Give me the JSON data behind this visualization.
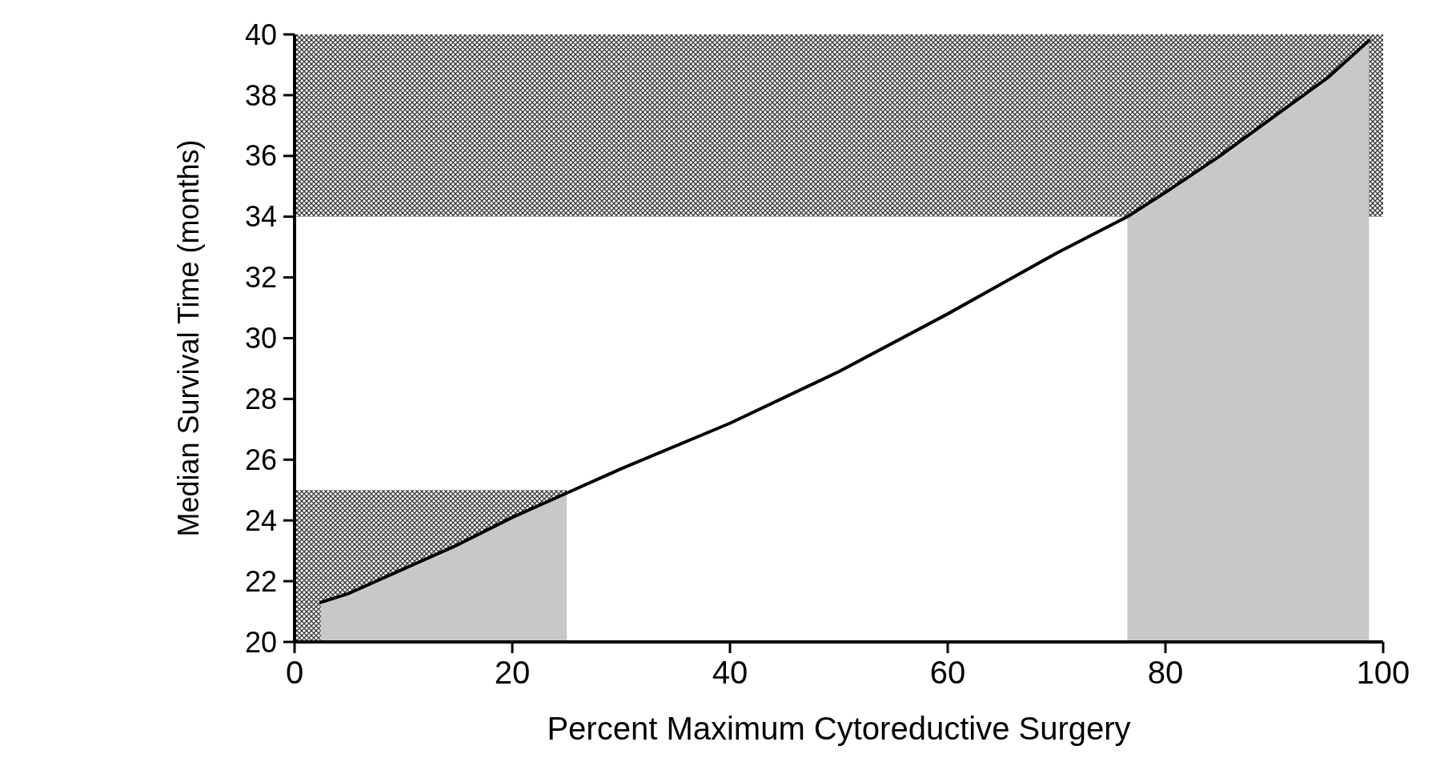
{
  "chart_data": {
    "type": "line",
    "xlabel": "Percent Maximum Cytoreductive Surgery",
    "ylabel": "Median Survival Time (months)",
    "xlim": [
      0,
      100
    ],
    "ylim": [
      20,
      40
    ],
    "xticks": [
      0,
      20,
      40,
      60,
      80,
      100
    ],
    "yticks": [
      20,
      22,
      24,
      26,
      28,
      30,
      32,
      34,
      36,
      38,
      40
    ],
    "grid": false,
    "bands": [
      {
        "axis": "y",
        "from": 34,
        "to": 40,
        "color": "#333333"
      }
    ],
    "series": [
      {
        "type": "area",
        "color": "#333333",
        "x": [
          0,
          25
        ],
        "values": [
          25,
          25
        ]
      },
      {
        "type": "area",
        "color": "#c8c8c8",
        "x": [
          2.4,
          5,
          10,
          15,
          20,
          25
        ],
        "values": [
          21.3,
          21.6,
          22.4,
          23.2,
          24.1,
          24.9
        ]
      },
      {
        "type": "area",
        "color": "#c8c8c8",
        "x": [
          76.5,
          80,
          85,
          90,
          95,
          98.7
        ],
        "values": [
          34,
          34.8,
          36,
          37.3,
          38.6,
          39.8
        ]
      },
      {
        "color": "#000000",
        "x": [
          2.4,
          5,
          10,
          15,
          20,
          25,
          30,
          40,
          50,
          60,
          70,
          76.5,
          80,
          85,
          90,
          95,
          98.7
        ],
        "values": [
          21.3,
          21.6,
          22.4,
          23.2,
          24.1,
          24.9,
          25.7,
          27.2,
          28.9,
          30.8,
          32.8,
          34,
          34.8,
          36,
          37.3,
          38.6,
          39.8
        ]
      }
    ]
  }
}
